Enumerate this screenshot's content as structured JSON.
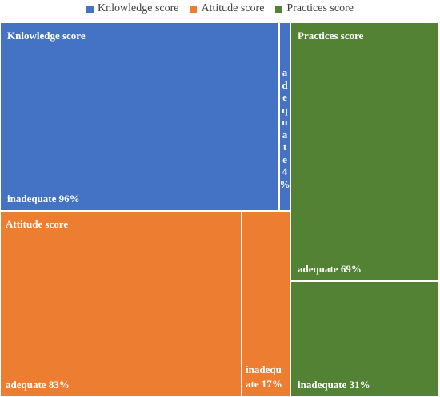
{
  "chart_data": {
    "type": "treemap",
    "legend": {
      "placement": "top-center",
      "entries": [
        {
          "name": "Knlowledge score",
          "color": "#4472c4"
        },
        {
          "name": "Attitude score",
          "color": "#ed7d31"
        },
        {
          "name": "Practices score",
          "color": "#548235"
        }
      ]
    },
    "groups": [
      {
        "key": "knowledge",
        "name": "Knlowledge score",
        "color": "#4472c4",
        "items": [
          {
            "key": "inadequate",
            "label": "inadequate",
            "value": 96,
            "value_label": "96%"
          },
          {
            "key": "adequate",
            "label": "adequate",
            "value": 4,
            "value_label": "4%"
          }
        ]
      },
      {
        "key": "attitude",
        "name": "Attitude score",
        "color": "#ed7d31",
        "items": [
          {
            "key": "adequate",
            "label": "adequate",
            "value": 83,
            "value_label": "83%"
          },
          {
            "key": "inadequate",
            "label": "inadequate",
            "value": 17,
            "value_label": "17%"
          }
        ]
      },
      {
        "key": "practices",
        "name": "Practices score",
        "color": "#548235",
        "items": [
          {
            "key": "adequate",
            "label": "adequate",
            "value": 69,
            "value_label": "69%"
          },
          {
            "key": "inadequate",
            "label": "inadequate",
            "value": 31,
            "value_label": "31%"
          }
        ]
      }
    ]
  }
}
